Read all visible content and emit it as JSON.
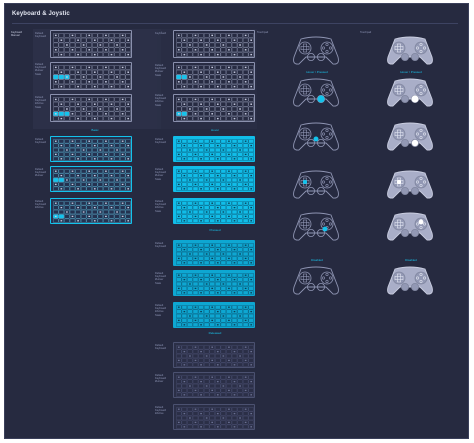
{
  "header": {
    "title": "Keyboard & Joystic"
  },
  "columns": {
    "col1": "Keyboard",
    "col2": "Joystick",
    "col3": "Touchpad"
  },
  "rows": {
    "r1": "Default\nKeyboard",
    "r2": "Default\nKeyboard\n#Hover\nState",
    "r3": "Default\nKeyboard\n#Active\nState",
    "r4": "Default\nKeyboard",
    "r5": "Default\nKeyboard\n#Hover",
    "r6": "Default\nKeyboard\n#Active",
    "r7": "Keyboard",
    "r8": "Default\nKeyboard\n#Hover\nState",
    "r9": "Default\nKeyboard\n#Active\nState",
    "r10": "Default\nKeyboard",
    "r11": "Default\nKeyboard\n#Hover\nState",
    "r12": "Default\nKeyboard\n#Active\nState",
    "r13": "Default\nKeyboard",
    "r14": "Default\nKeyboard\n#Hover",
    "r15": "Default\nKeyboard\n#Active"
  },
  "left_label": "Keyboard\nManual",
  "sections": {
    "s_keyboard_a": "Basic",
    "s_joystick_a": "Hover",
    "s_joystick_b": "Pressed",
    "s_joystick_c": "Released",
    "s_ctrl_1": "Hover / Pressed",
    "s_ctrl_2": "Hover / Pressed",
    "s_ctrl_3": "Disabled",
    "s_ctrl_4": "Disabled"
  },
  "colors": {
    "background": "#262a40",
    "accent": "#13c3ec",
    "outline": "#8a90ad"
  }
}
